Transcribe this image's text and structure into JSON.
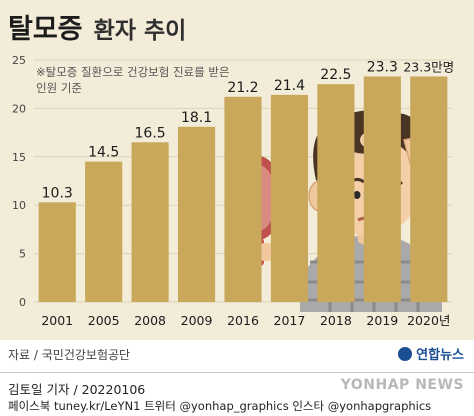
{
  "title": {
    "main": "탈모증",
    "sub": "환자 추이"
  },
  "note": "※탈모증 질환으로 건강보험 진료를 받은 인원 기준",
  "source": "자료 / 국민건강보험공단",
  "logo": "연합뉴스",
  "footer": {
    "reporter": "김토일 기자 / 20220106",
    "sns": "페이스북 tuney.kr/LeYN1 트위터 @yonhap_graphics 인스타 @yonhapgraphics",
    "watermark": "YONHAP NEWS"
  },
  "chart_data": {
    "type": "bar",
    "categories": [
      "2001",
      "2005",
      "2008",
      "2009",
      "2016",
      "2017",
      "2018",
      "2019",
      "2020년"
    ],
    "values": [
      10.3,
      14.5,
      16.5,
      18.1,
      21.2,
      21.4,
      22.5,
      23.3,
      23.3
    ],
    "value_labels": [
      "10.3",
      "14.5",
      "16.5",
      "18.1",
      "21.2",
      "21.4",
      "22.5",
      "23.3",
      "23.3만명"
    ],
    "yticks": [
      "0",
      "5",
      "10",
      "15",
      "20",
      "25"
    ],
    "ylim": [
      0,
      25
    ],
    "grid": true,
    "colors": {
      "bar": "#c9a85c",
      "background": "#f3ecd8",
      "grid": "#dcd2b8"
    }
  }
}
